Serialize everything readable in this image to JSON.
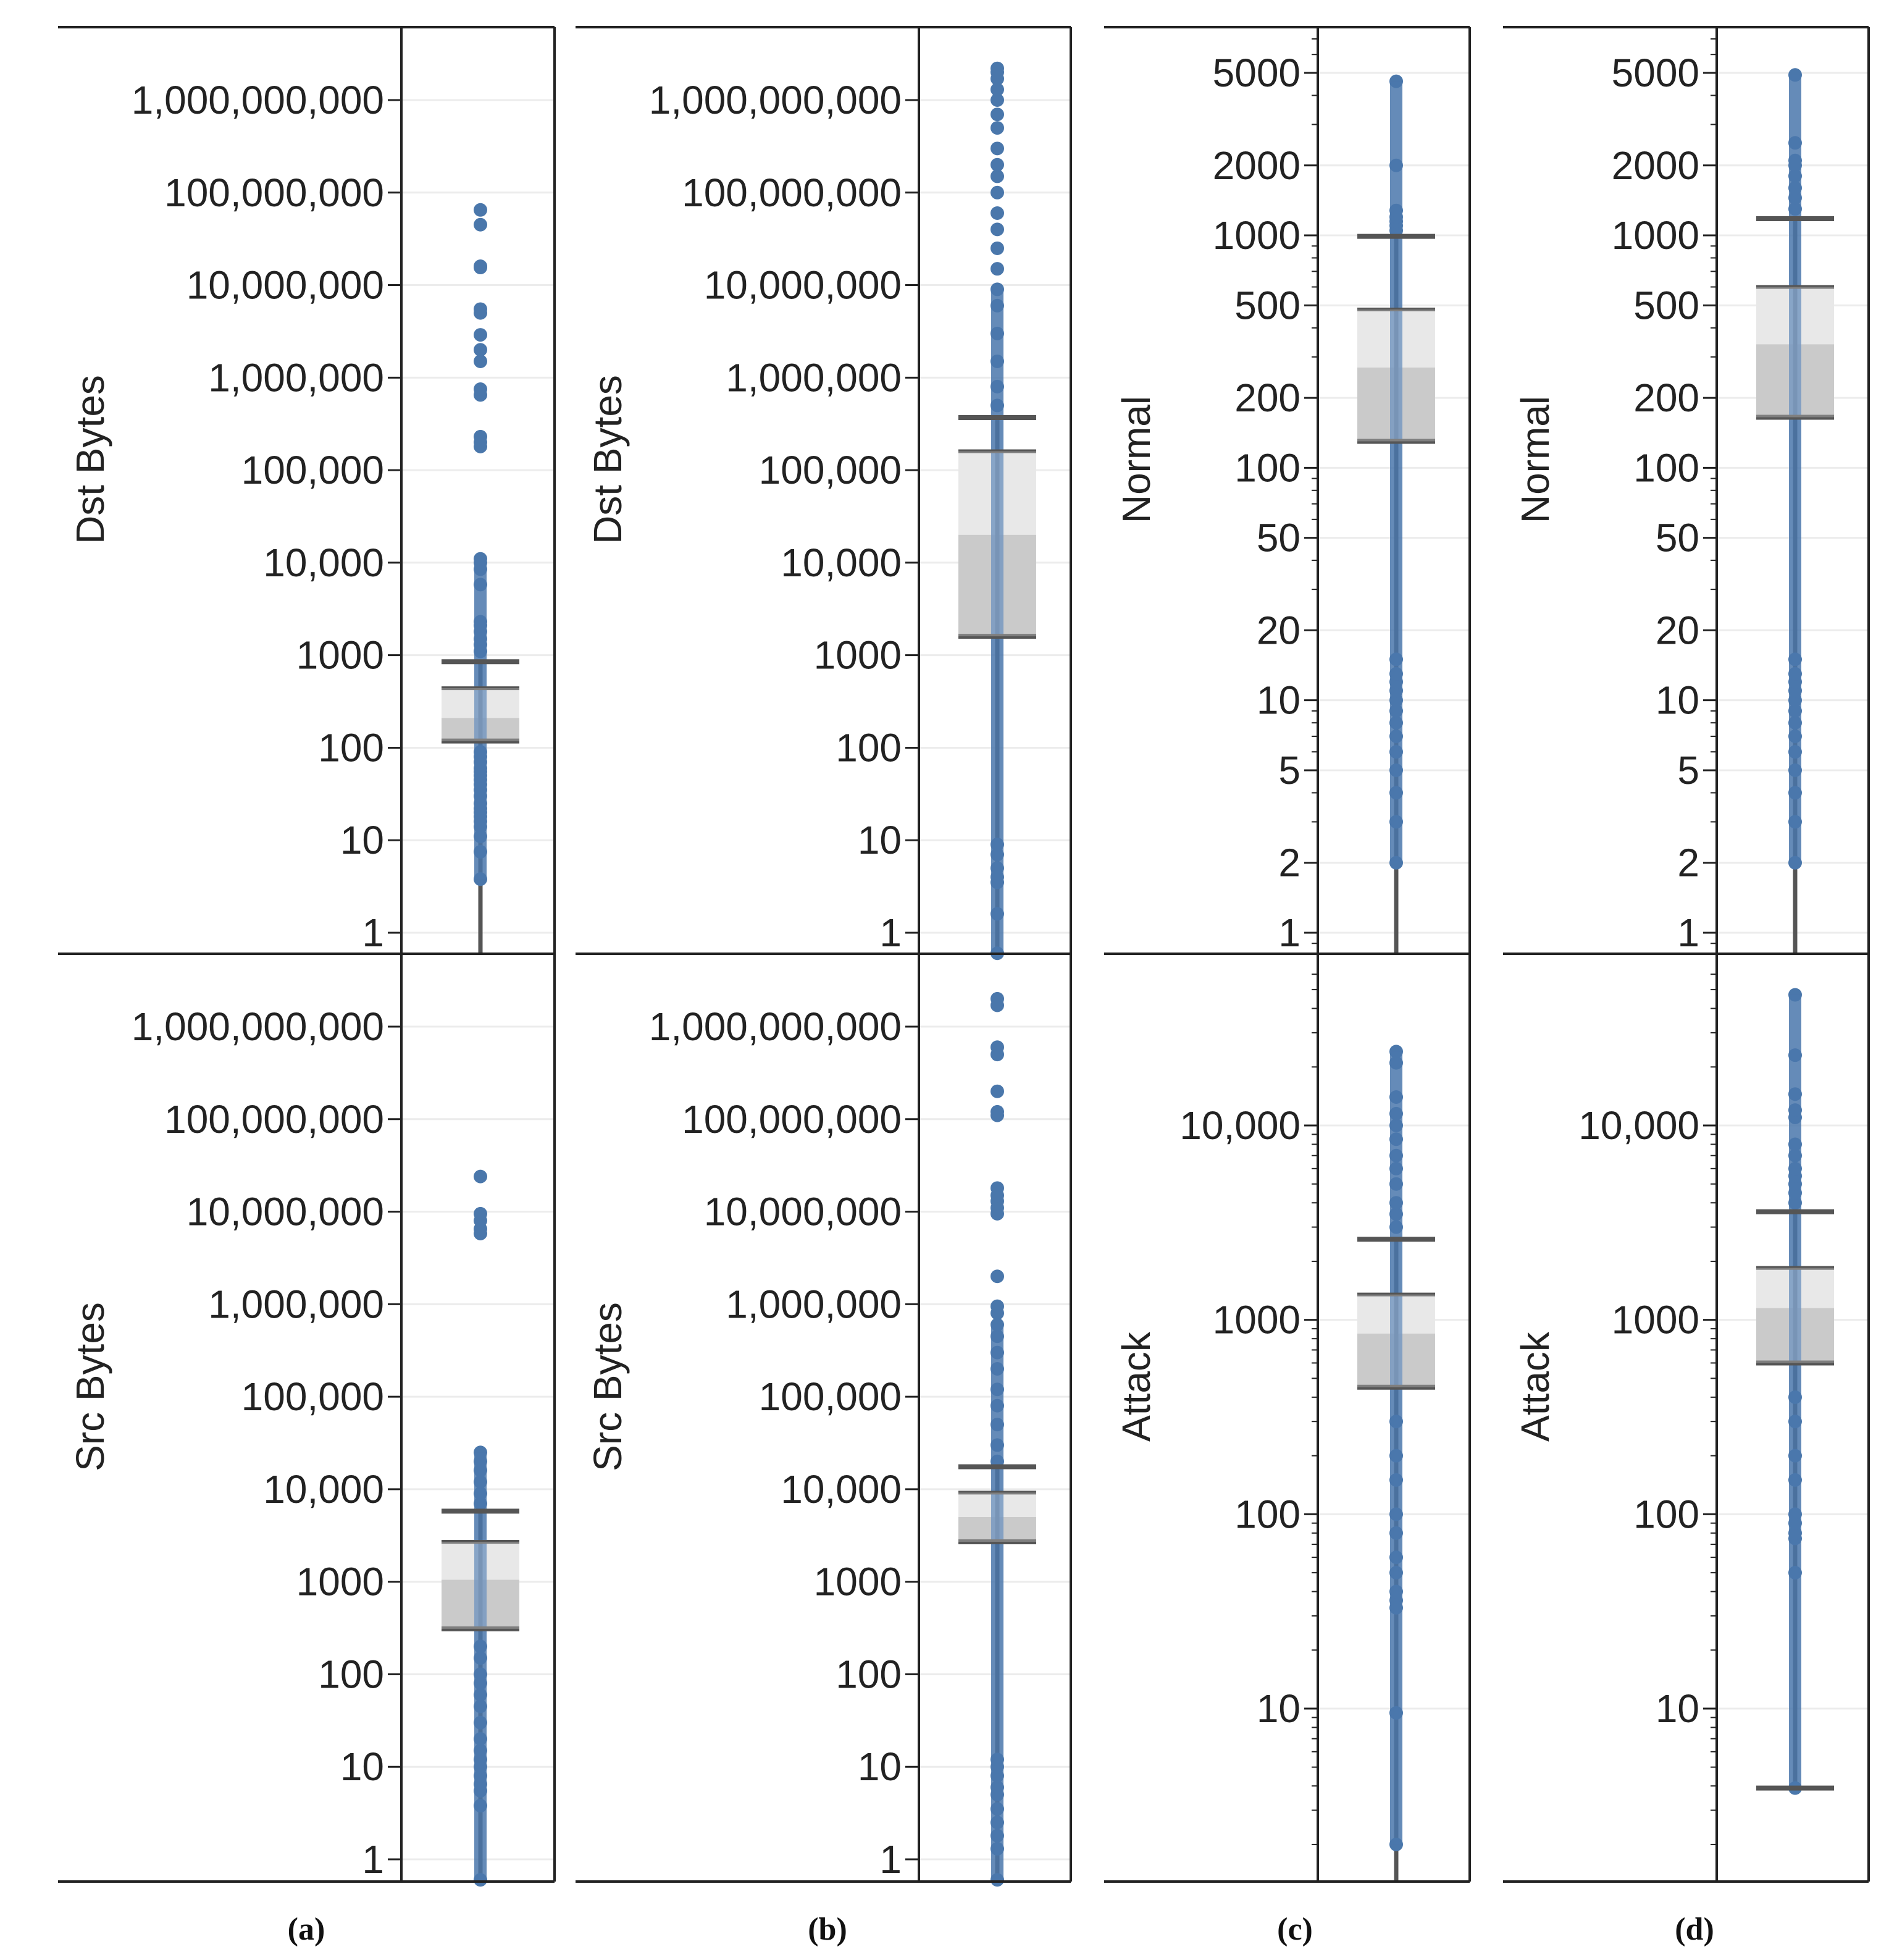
{
  "figure": {
    "captions": [
      "(a)",
      "(b)",
      "(c)",
      "(d)"
    ]
  },
  "colors": {
    "point": "#4a77ab",
    "whisker": "#555555",
    "box_upper": "#e0e0e0",
    "box_lower": "#b8b8b8",
    "grid": "#ececec",
    "frame": "#222222"
  },
  "chart_data": [
    {
      "type": "box",
      "panel": "a-top",
      "ylabel": "Dst Bytes",
      "scale": "log",
      "ylim": [
        0.6,
        5000000000
      ],
      "ticks": [
        1,
        10,
        100,
        1000,
        10000,
        100000,
        1000000,
        10000000,
        100000000,
        1000000000
      ],
      "tick_labels": [
        "1",
        "10",
        "100",
        "1000",
        "10,000",
        "100,000",
        "1,000,000",
        "10,000,000",
        "100,000,000",
        "1,000,000,000"
      ],
      "minor_ticks": false,
      "box": {
        "whisker_low": 0.6,
        "whisker_high": 850,
        "q1": 118,
        "median": 210,
        "q3": 440,
        "cap_low": 118,
        "cap_high": 850
      },
      "points": [
        3.8,
        7.5,
        11,
        14,
        16,
        18,
        20,
        22,
        25,
        30,
        35,
        40,
        45,
        50,
        55,
        60,
        70,
        80,
        90,
        1100,
        1300,
        1500,
        1800,
        2100,
        2300,
        5800,
        8500,
        10000,
        11000,
        180000,
        200000,
        230000,
        650000,
        750000,
        1500000,
        2000000,
        2900000,
        5000000,
        5500000,
        15500000,
        16000000,
        45000000,
        65000000
      ]
    },
    {
      "type": "box",
      "panel": "b-top",
      "ylabel": "Dst Bytes",
      "scale": "log",
      "ylim": [
        0.6,
        5000000000
      ],
      "ticks": [
        1,
        10,
        100,
        1000,
        10000,
        100000,
        1000000,
        10000000,
        100000000,
        1000000000
      ],
      "tick_labels": [
        "1",
        "10",
        "100",
        "1000",
        "10,000",
        "100,000",
        "1,000,000",
        "10,000,000",
        "100,000,000",
        "1,000,000,000"
      ],
      "minor_ticks": false,
      "box": {
        "whisker_low": 0.6,
        "whisker_high": 370000,
        "q1": 1600,
        "median": 20000,
        "q3": 160000,
        "cap_low": 1600,
        "cap_high": 370000
      },
      "points": [
        0.6,
        1.6,
        3.5,
        4,
        5,
        7,
        9,
        500000,
        800000,
        1500000,
        3000000,
        6000000,
        9000000,
        15000000,
        25000000,
        40000000,
        60000000,
        100000000,
        150000000,
        200000000,
        300000000,
        500000000,
        700000000,
        1000000000,
        1300000000,
        1700000000,
        2000000000,
        2200000000
      ]
    },
    {
      "type": "box",
      "panel": "c-top",
      "ylabel": "Normal",
      "scale": "log",
      "ylim": [
        0.7,
        7000
      ],
      "ticks": [
        1,
        2,
        5,
        10,
        20,
        50,
        100,
        200,
        500,
        1000,
        2000,
        5000
      ],
      "tick_labels": [
        "1",
        "2",
        "5",
        "10",
        "20",
        "50",
        "100",
        "200",
        "500",
        "1000",
        "2000",
        "5000"
      ],
      "minor_ticks": true,
      "box": {
        "whisker_low": 0.7,
        "whisker_high": 990,
        "q1": 130,
        "median": 270,
        "q3": 480,
        "cap_low": 130,
        "cap_high": 990
      },
      "points": [
        2,
        3,
        4,
        5,
        6,
        7,
        8,
        9,
        10,
        11,
        12,
        13,
        15,
        1050,
        1100,
        1150,
        1200,
        1280,
        2000,
        4600
      ]
    },
    {
      "type": "box",
      "panel": "d-top",
      "ylabel": "Normal",
      "scale": "log",
      "ylim": [
        0.7,
        7000
      ],
      "ticks": [
        1,
        2,
        5,
        10,
        20,
        50,
        100,
        200,
        500,
        1000,
        2000,
        5000
      ],
      "tick_labels": [
        "1",
        "2",
        "5",
        "10",
        "20",
        "50",
        "100",
        "200",
        "500",
        "1000",
        "2000",
        "5000"
      ],
      "minor_ticks": true,
      "box": {
        "whisker_low": 0.7,
        "whisker_high": 1180,
        "q1": 165,
        "median": 340,
        "q3": 600,
        "cap_low": 165,
        "cap_high": 1180
      },
      "points": [
        2,
        3,
        4,
        5,
        6,
        7,
        8,
        9,
        10,
        11,
        12,
        13,
        15,
        1300,
        1450,
        1600,
        1800,
        2000,
        2100,
        2500,
        4900
      ]
    },
    {
      "type": "box",
      "panel": "a-bottom",
      "ylabel": "Src Bytes",
      "scale": "log",
      "ylim": [
        0.6,
        5000000000
      ],
      "ticks": [
        1,
        10,
        100,
        1000,
        10000,
        100000,
        1000000,
        10000000,
        100000000,
        1000000000
      ],
      "tick_labels": [
        "1",
        "10",
        "100",
        "1000",
        "10,000",
        "100,000",
        "1,000,000",
        "10,000,000",
        "100,000,000",
        "1,000,000,000"
      ],
      "minor_ticks": false,
      "box": {
        "whisker_low": 0.6,
        "whisker_high": 5800,
        "q1": 310,
        "median": 1050,
        "q3": 2700,
        "cap_low": 310,
        "cap_high": 5800
      },
      "points": [
        0.6,
        3.8,
        5.5,
        6.5,
        8,
        10,
        12,
        15,
        20,
        30,
        45,
        60,
        80,
        100,
        150,
        200,
        7000,
        9000,
        12000,
        16000,
        20000,
        25000,
        5800000,
        6500000,
        8000000,
        9500000,
        24000000
      ]
    },
    {
      "type": "box",
      "panel": "b-bottom",
      "ylabel": "Src Bytes",
      "scale": "log",
      "ylim": [
        0.6,
        5000000000
      ],
      "ticks": [
        1,
        10,
        100,
        1000,
        10000,
        100000,
        1000000,
        10000000,
        100000000,
        1000000000
      ],
      "tick_labels": [
        "1",
        "10",
        "100",
        "1000",
        "10,000",
        "100,000",
        "1,000,000",
        "10,000,000",
        "100,000,000",
        "1,000,000,000"
      ],
      "minor_ticks": false,
      "box": {
        "whisker_low": 0.6,
        "whisker_high": 17500,
        "q1": 2700,
        "median": 5000,
        "q3": 9200,
        "cap_low": 2700,
        "cap_high": 17500
      },
      "points": [
        0.6,
        1.3,
        1.8,
        2.5,
        3.5,
        5,
        6,
        8,
        10,
        12,
        20000,
        30000,
        50000,
        80000,
        120000,
        200000,
        300000,
        450000,
        600000,
        800000,
        950000,
        2000000,
        9500000,
        11000000,
        13000000,
        15000000,
        18000000,
        110000000,
        120000000,
        200000000,
        500000000,
        600000000,
        1700000000,
        2000000000
      ]
    },
    {
      "type": "box",
      "panel": "c-bottom",
      "ylabel": "Attack",
      "scale": "log",
      "ylim": [
        1,
        60000
      ],
      "ticks": [
        10,
        100,
        1000,
        10000
      ],
      "tick_labels": [
        "10",
        "100",
        "1000",
        "10,000"
      ],
      "minor_ticks": true,
      "box": {
        "whisker_low": 1,
        "whisker_high": 2600,
        "q1": 450,
        "median": 850,
        "q3": 1350,
        "cap_low": 450,
        "cap_high": 2600
      },
      "points": [
        2,
        9.5,
        33,
        36,
        40,
        50,
        60,
        80,
        100,
        150,
        200,
        300,
        3000,
        3500,
        4000,
        5000,
        6000,
        7000,
        8500,
        10000,
        11500,
        14000,
        21000,
        24000
      ]
    },
    {
      "type": "box",
      "panel": "d-bottom",
      "ylabel": "Attack",
      "scale": "log",
      "ylim": [
        1,
        60000
      ],
      "ticks": [
        10,
        100,
        1000,
        10000
      ],
      "tick_labels": [
        "10",
        "100",
        "1000",
        "10,000"
      ],
      "minor_ticks": true,
      "box": {
        "whisker_low": 3.9,
        "whisker_high": 3600,
        "q1": 600,
        "median": 1150,
        "q3": 1850,
        "cap_low": 3.9,
        "cap_high": 3600
      },
      "points": [
        3.9,
        50,
        75,
        80,
        90,
        100,
        150,
        200,
        300,
        400,
        4000,
        4500,
        5000,
        5500,
        6000,
        7000,
        8000,
        11000,
        12000,
        14500,
        23000,
        47000
      ]
    }
  ]
}
